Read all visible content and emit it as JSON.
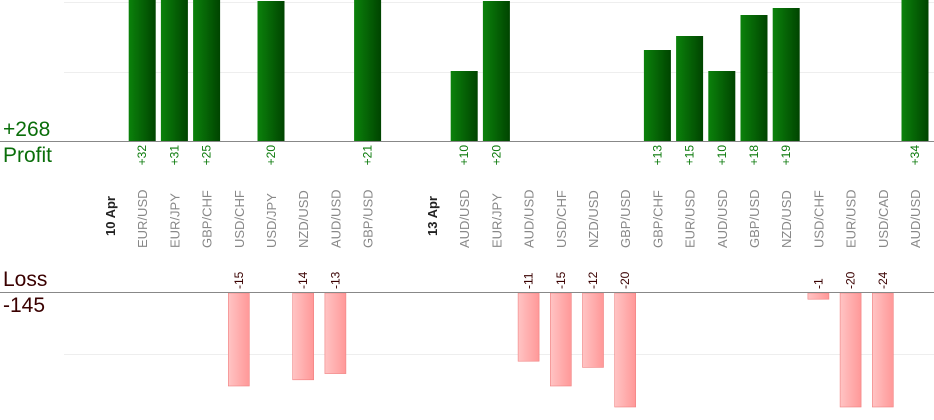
{
  "summary": {
    "profit_total": "+268",
    "profit_label": "Profit",
    "loss_label": "Loss",
    "loss_total": "-145"
  },
  "colors": {
    "profit": "#006400",
    "loss": "#ffa0a0",
    "profit_text": "#0a7a0a",
    "loss_text": "#3a0000"
  },
  "chart_data": {
    "type": "bar",
    "grid": true,
    "categories": [
      "10 Apr",
      "EUR/USD",
      "EUR/JPY",
      "GBP/CHF",
      "USD/CHF",
      "USD/JPY",
      "NZD/USD",
      "AUD/USD",
      "GBP/USD",
      "",
      "13 Apr",
      "AUD/USD",
      "EUR/JPY",
      "AUD/USD",
      "USD/CHF",
      "NZD/USD",
      "GBP/USD",
      "GBP/CHF",
      "EUR/USD",
      "AUD/USD",
      "GBP/USD",
      "NZD/USD",
      "USD/CHF",
      "EUR/USD",
      "USD/CAD",
      "AUD/USD"
    ],
    "date_categories": [
      "10 Apr",
      "13 Apr"
    ],
    "values": [
      null,
      32,
      31,
      25,
      -15,
      20,
      -14,
      -13,
      21,
      null,
      null,
      10,
      20,
      -11,
      -15,
      -12,
      -20,
      13,
      15,
      10,
      18,
      19,
      -1,
      -20,
      -24,
      34
    ],
    "value_labels": [
      "",
      "+32",
      "+31",
      "+25",
      "-15",
      "+20",
      "-14",
      "-13",
      "+21",
      "",
      "",
      "+10",
      "+20",
      "-11",
      "-15",
      "-12",
      "-20",
      "+13",
      "+15",
      "+10",
      "+18",
      "+19",
      "-1",
      "-20",
      "-24",
      "+34"
    ]
  }
}
